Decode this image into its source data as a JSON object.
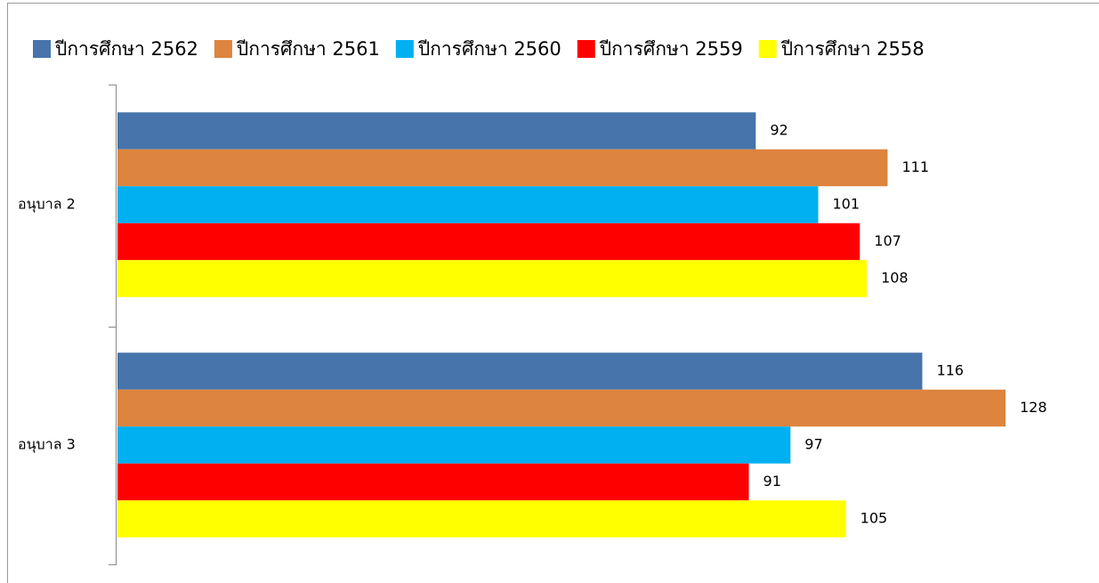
{
  "chart_data": {
    "type": "bar",
    "orientation": "horizontal",
    "categories": [
      "อนุบาล 2",
      "อนุบาล 3"
    ],
    "series": [
      {
        "name": "ปีการศึกษา 2562",
        "color": "#4674ab",
        "values": [
          92,
          116
        ]
      },
      {
        "name": "ปีการศึกษา 2561",
        "color": "#dd843e",
        "values": [
          111,
          128
        ]
      },
      {
        "name": "ปีการศึกษา 2560",
        "color": "#00b0f0",
        "values": [
          101,
          97
        ]
      },
      {
        "name": "ปีการศึกษา 2559",
        "color": "#ff0000",
        "values": [
          107,
          91
        ]
      },
      {
        "name": "ปีการศึกษา 2558",
        "color": "#ffff00",
        "values": [
          108,
          105
        ]
      }
    ],
    "legend": "top",
    "data_labels": true
  }
}
